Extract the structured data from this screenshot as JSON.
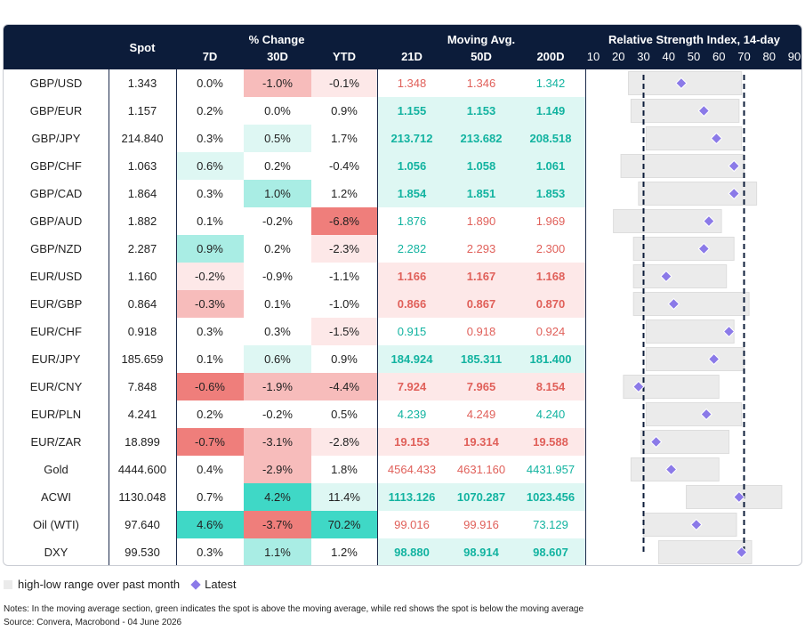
{
  "headers": {
    "spot": "Spot",
    "pct_change": "% Change",
    "d7": "7D",
    "d30": "30D",
    "ytd": "YTD",
    "moving_avg": "Moving Avg.",
    "d21": "21D",
    "d50": "50D",
    "d200": "200D",
    "rsi": "Relative Strength Index, 14-day"
  },
  "rsi_ticks": [
    "10",
    "20",
    "30",
    "40",
    "50",
    "60",
    "70",
    "80",
    "90"
  ],
  "colors": {
    "header_bg": "#0c1c3a",
    "green_strong": "#3fd8c6",
    "green_mid": "#a9ede4",
    "green_light": "#def7f3",
    "red_strong": "#ef7e7b",
    "red_mid": "#f7bcbb",
    "red_light": "#fde8e8",
    "ma_green_text": "#12b3a0",
    "ma_red_text": "#e0605a",
    "range_bar": "#ebebeb",
    "marker": "#8b7ae8"
  },
  "chart_data": {
    "type": "table",
    "title": "Relative Strength Index, 14-day",
    "rsi_axis": [
      10,
      90
    ],
    "rsi_reference_lines": [
      30,
      70
    ],
    "rows": [
      {
        "name": "GBP/USD",
        "spot": "1.343",
        "d7": "0.0%",
        "d30": "-1.0%",
        "ytd": "-0.1%",
        "ma21": "1.348",
        "ma50": "1.346",
        "ma200": "1.342",
        "ma_bg": "none",
        "ma_colors": [
          "r",
          "r",
          "g"
        ],
        "bg7": "",
        "bg30": "red_mid",
        "bgy": "red_light",
        "rsi_low": 24,
        "rsi_high": 69,
        "rsi": 45
      },
      {
        "name": "GBP/EUR",
        "spot": "1.157",
        "d7": "0.2%",
        "d30": "0.0%",
        "ytd": "0.9%",
        "ma21": "1.155",
        "ma50": "1.153",
        "ma200": "1.149",
        "ma_bg": "green",
        "ma_colors": [
          "g",
          "g",
          "g"
        ],
        "bg7": "",
        "bg30": "",
        "bgy": "",
        "rsi_low": 25,
        "rsi_high": 68,
        "rsi": 54
      },
      {
        "name": "GBP/JPY",
        "spot": "214.840",
        "d7": "0.3%",
        "d30": "0.5%",
        "ytd": "1.7%",
        "ma21": "213.712",
        "ma50": "213.682",
        "ma200": "208.518",
        "ma_bg": "green",
        "ma_colors": [
          "g",
          "g",
          "g"
        ],
        "bg7": "",
        "bg30": "green_light",
        "bgy": "",
        "rsi_low": 31,
        "rsi_high": 69,
        "rsi": 59
      },
      {
        "name": "GBP/CHF",
        "spot": "1.063",
        "d7": "0.6%",
        "d30": "0.2%",
        "ytd": "-0.4%",
        "ma21": "1.056",
        "ma50": "1.058",
        "ma200": "1.061",
        "ma_bg": "green",
        "ma_colors": [
          "g",
          "g",
          "g"
        ],
        "bg7": "green_light",
        "bg30": "",
        "bgy": "",
        "rsi_low": 21,
        "rsi_high": 70,
        "rsi": 66
      },
      {
        "name": "GBP/CAD",
        "spot": "1.864",
        "d7": "0.3%",
        "d30": "1.0%",
        "ytd": "1.2%",
        "ma21": "1.854",
        "ma50": "1.851",
        "ma200": "1.853",
        "ma_bg": "green",
        "ma_colors": [
          "g",
          "g",
          "g"
        ],
        "bg7": "",
        "bg30": "green_mid",
        "bgy": "",
        "rsi_low": 28,
        "rsi_high": 75,
        "rsi": 66
      },
      {
        "name": "GBP/AUD",
        "spot": "1.882",
        "d7": "0.1%",
        "d30": "-0.2%",
        "ytd": "-6.8%",
        "ma21": "1.876",
        "ma50": "1.890",
        "ma200": "1.969",
        "ma_bg": "none",
        "ma_colors": [
          "g",
          "r",
          "r"
        ],
        "bg7": "",
        "bg30": "",
        "bgy": "red_strong",
        "rsi_low": 18,
        "rsi_high": 61,
        "rsi": 56
      },
      {
        "name": "GBP/NZD",
        "spot": "2.287",
        "d7": "0.9%",
        "d30": "0.2%",
        "ytd": "-2.3%",
        "ma21": "2.282",
        "ma50": "2.293",
        "ma200": "2.300",
        "ma_bg": "none",
        "ma_colors": [
          "g",
          "r",
          "r"
        ],
        "bg7": "green_mid",
        "bg30": "",
        "bgy": "red_light",
        "rsi_low": 26,
        "rsi_high": 66,
        "rsi": 54
      },
      {
        "name": "EUR/USD",
        "spot": "1.160",
        "d7": "-0.2%",
        "d30": "-0.9%",
        "ytd": "-1.1%",
        "ma21": "1.166",
        "ma50": "1.167",
        "ma200": "1.168",
        "ma_bg": "red",
        "ma_colors": [
          "r",
          "r",
          "r"
        ],
        "bg7": "red_light",
        "bg30": "",
        "bgy": "",
        "rsi_low": 26,
        "rsi_high": 63,
        "rsi": 39
      },
      {
        "name": "EUR/GBP",
        "spot": "0.864",
        "d7": "-0.3%",
        "d30": "0.1%",
        "ytd": "-1.0%",
        "ma21": "0.866",
        "ma50": "0.867",
        "ma200": "0.870",
        "ma_bg": "red",
        "ma_colors": [
          "r",
          "r",
          "r"
        ],
        "bg7": "red_mid",
        "bg30": "",
        "bgy": "",
        "rsi_low": 26,
        "rsi_high": 72,
        "rsi": 42
      },
      {
        "name": "EUR/CHF",
        "spot": "0.918",
        "d7": "0.3%",
        "d30": "0.3%",
        "ytd": "-1.5%",
        "ma21": "0.915",
        "ma50": "0.918",
        "ma200": "0.924",
        "ma_bg": "none",
        "ma_colors": [
          "g",
          "r",
          "r"
        ],
        "bg7": "",
        "bg30": "",
        "bgy": "red_light",
        "rsi_low": 31,
        "rsi_high": 66,
        "rsi": 64
      },
      {
        "name": "EUR/JPY",
        "spot": "185.659",
        "d7": "0.1%",
        "d30": "0.6%",
        "ytd": "0.9%",
        "ma21": "184.924",
        "ma50": "185.311",
        "ma200": "181.400",
        "ma_bg": "green",
        "ma_colors": [
          "g",
          "g",
          "g"
        ],
        "bg7": "",
        "bg30": "green_light",
        "bgy": "",
        "rsi_low": 31,
        "rsi_high": 70,
        "rsi": 58
      },
      {
        "name": "EUR/CNY",
        "spot": "7.848",
        "d7": "-0.6%",
        "d30": "-1.9%",
        "ytd": "-4.4%",
        "ma21": "7.924",
        "ma50": "7.965",
        "ma200": "8.154",
        "ma_bg": "red",
        "ma_colors": [
          "r",
          "r",
          "r"
        ],
        "bg7": "red_strong",
        "bg30": "red_mid",
        "bgy": "red_mid",
        "rsi_low": 22,
        "rsi_high": 60,
        "rsi": 28
      },
      {
        "name": "EUR/PLN",
        "spot": "4.241",
        "d7": "0.2%",
        "d30": "-0.2%",
        "ytd": "0.5%",
        "ma21": "4.239",
        "ma50": "4.249",
        "ma200": "4.240",
        "ma_bg": "none",
        "ma_colors": [
          "g",
          "r",
          "g"
        ],
        "bg7": "",
        "bg30": "",
        "bgy": "",
        "rsi_low": 31,
        "rsi_high": 69,
        "rsi": 55
      },
      {
        "name": "EUR/ZAR",
        "spot": "18.899",
        "d7": "-0.7%",
        "d30": "-3.1%",
        "ytd": "-2.8%",
        "ma21": "19.153",
        "ma50": "19.314",
        "ma200": "19.588",
        "ma_bg": "red",
        "ma_colors": [
          "r",
          "r",
          "r"
        ],
        "bg7": "red_strong",
        "bg30": "red_mid",
        "bgy": "red_light",
        "rsi_low": 29,
        "rsi_high": 64,
        "rsi": 35
      },
      {
        "name": "Gold",
        "spot": "4444.600",
        "d7": "0.4%",
        "d30": "-2.9%",
        "ytd": "1.8%",
        "ma21": "4564.433",
        "ma50": "4631.160",
        "ma200": "4431.957",
        "ma_bg": "none",
        "ma_colors": [
          "r",
          "r",
          "g"
        ],
        "bg7": "",
        "bg30": "red_mid",
        "bgy": "",
        "rsi_low": 25,
        "rsi_high": 60,
        "rsi": 41
      },
      {
        "name": "ACWI",
        "spot": "1130.048",
        "d7": "0.7%",
        "d30": "4.2%",
        "ytd": "11.4%",
        "ma21": "1113.126",
        "ma50": "1070.287",
        "ma200": "1023.456",
        "ma_bg": "green",
        "ma_colors": [
          "g",
          "g",
          "g"
        ],
        "bg7": "",
        "bg30": "green_strong",
        "bgy": "green_light",
        "rsi_low": 47,
        "rsi_high": 85,
        "rsi": 68
      },
      {
        "name": "Oil (WTI)",
        "spot": "97.640",
        "d7": "4.6%",
        "d30": "-3.7%",
        "ytd": "70.2%",
        "ma21": "99.016",
        "ma50": "99.916",
        "ma200": "73.129",
        "ma_bg": "none",
        "ma_colors": [
          "r",
          "r",
          "g"
        ],
        "bg7": "green_strong",
        "bg30": "red_strong",
        "bgy": "green_strong",
        "rsi_low": 30,
        "rsi_high": 67,
        "rsi": 51
      },
      {
        "name": "DXY",
        "spot": "99.530",
        "d7": "0.3%",
        "d30": "1.1%",
        "ytd": "1.2%",
        "ma21": "98.880",
        "ma50": "98.914",
        "ma200": "98.607",
        "ma_bg": "green",
        "ma_colors": [
          "g",
          "g",
          "g"
        ],
        "bg7": "",
        "bg30": "green_mid",
        "bgy": "",
        "rsi_low": 36,
        "rsi_high": 73,
        "rsi": 69
      }
    ]
  },
  "legend": {
    "range_label": "high-low range over past month",
    "latest_label": "Latest"
  },
  "notes": {
    "line1": "Notes: In the moving average section, green indicates the spot is above the moving average, while red shows the spot is below the moving average",
    "line2": "Source: Convera, Macrobond - 04 June 2026"
  }
}
